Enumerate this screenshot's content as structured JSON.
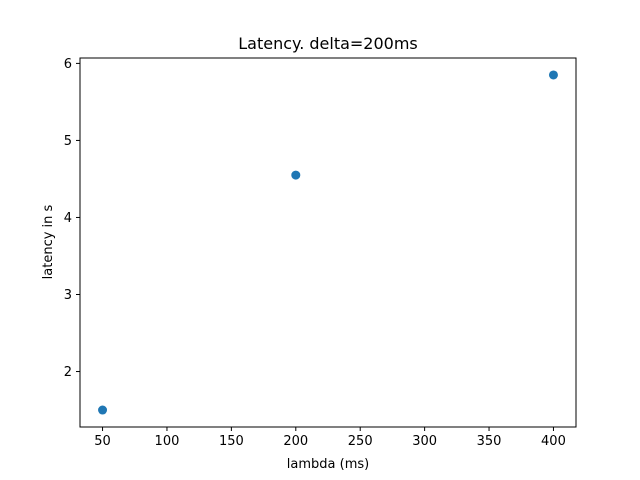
{
  "chart_data": {
    "type": "scatter",
    "title": "Latency. delta=200ms",
    "xlabel": "lambda (ms)",
    "ylabel": "latency in s",
    "xlim": [
      32.5,
      417.5
    ],
    "ylim": [
      1.28,
      6.07
    ],
    "xticks": [
      50,
      100,
      150,
      200,
      250,
      300,
      350,
      400
    ],
    "yticks": [
      2,
      3,
      4,
      5,
      6
    ],
    "grid": false,
    "series": [
      {
        "color": "#1f77b4",
        "points": [
          {
            "x": 50,
            "y": 1.5
          },
          {
            "x": 200,
            "y": 4.55
          },
          {
            "x": 400,
            "y": 5.85
          }
        ]
      }
    ]
  }
}
